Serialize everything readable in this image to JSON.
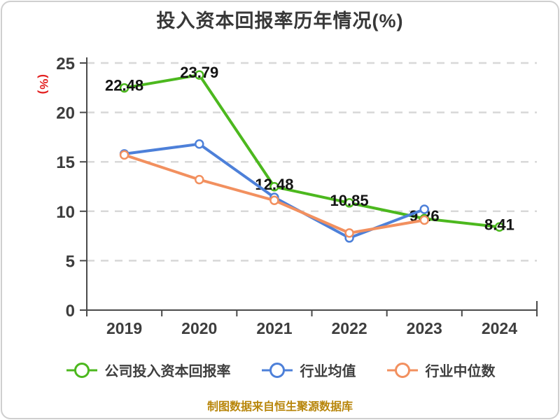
{
  "header": {
    "title": "投入资本回报率历年情况(%)"
  },
  "footer": {
    "source_note": "制图数据来自恒生聚源数据库"
  },
  "colors": {
    "title_text": "#383838",
    "axis": "#4a4a4a",
    "grid": "#d8d8d8",
    "data_label": "#141414",
    "y_axis_unit_label": "#e32222",
    "footer_note": "#b8860b",
    "series_company": "#4cb81e",
    "series_industry_mean": "#4d80d9",
    "series_industry_median": "#f2905f",
    "marker_fill": "#ffffff",
    "card_border": "#cfcfcf"
  },
  "chart_data": {
    "type": "line",
    "title": "投入资本回报率历年情况(%)",
    "ylabel": "(%)",
    "xlabel": "",
    "categories": [
      "2019",
      "2020",
      "2021",
      "2022",
      "2023",
      "2024"
    ],
    "ylim": [
      0,
      25
    ],
    "yticks": [
      0,
      5,
      10,
      15,
      20,
      25
    ],
    "grid": "horizontal-dashed",
    "legend_position": "bottom",
    "series": [
      {
        "name": "公司投入资本回报率",
        "color": "#4cb81e",
        "values": [
          22.48,
          23.79,
          12.48,
          10.85,
          9.26,
          8.41
        ],
        "point_labels": [
          "22.48",
          "23.79",
          "12.48",
          "10.85",
          "9.26",
          "8.41"
        ]
      },
      {
        "name": "行业均值",
        "color": "#4d80d9",
        "values": [
          15.8,
          16.8,
          11.4,
          7.3,
          10.2,
          null
        ]
      },
      {
        "name": "行业中位数",
        "color": "#f2905f",
        "values": [
          15.7,
          13.2,
          11.1,
          7.8,
          9.1,
          null
        ]
      }
    ]
  }
}
